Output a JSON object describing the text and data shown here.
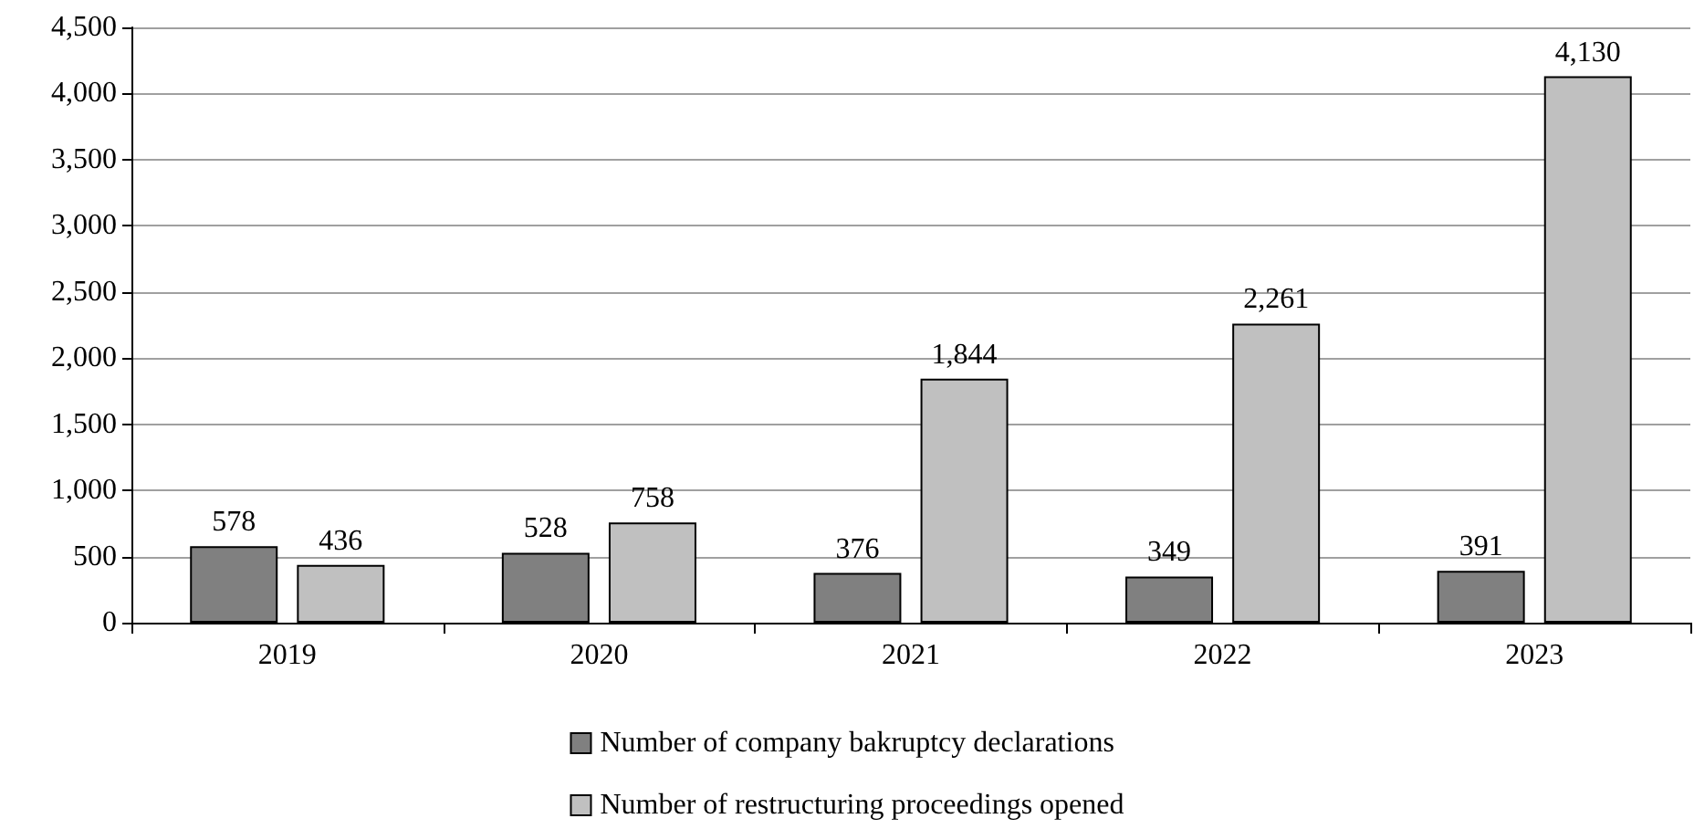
{
  "chart_data": {
    "type": "bar",
    "categories": [
      "2019",
      "2020",
      "2021",
      "2022",
      "2023"
    ],
    "series": [
      {
        "name": "Number of company bakruptcy declarations",
        "color": "#808080",
        "values": [
          578,
          528,
          376,
          349,
          391
        ],
        "value_labels": [
          "578",
          "528",
          "376",
          "349",
          "391"
        ]
      },
      {
        "name": "Number of restructuring proceedings opened",
        "color": "#c0c0c0",
        "values": [
          436,
          758,
          1844,
          2261,
          4130
        ],
        "value_labels": [
          "436",
          "758",
          "1,844",
          "2,261",
          "4,130"
        ]
      }
    ],
    "ylim": [
      0,
      4500
    ],
    "yticks": [
      {
        "value": 0,
        "label": "0"
      },
      {
        "value": 500,
        "label": "500"
      },
      {
        "value": 1000,
        "label": "1,000"
      },
      {
        "value": 1500,
        "label": "1,500"
      },
      {
        "value": 2000,
        "label": "2,000"
      },
      {
        "value": 2500,
        "label": "2,500"
      },
      {
        "value": 3000,
        "label": "3,000"
      },
      {
        "value": 3500,
        "label": "3,500"
      },
      {
        "value": 4000,
        "label": "4,000"
      },
      {
        "value": 4500,
        "label": "4,500"
      }
    ],
    "grid": "y",
    "legend": "bottom"
  }
}
